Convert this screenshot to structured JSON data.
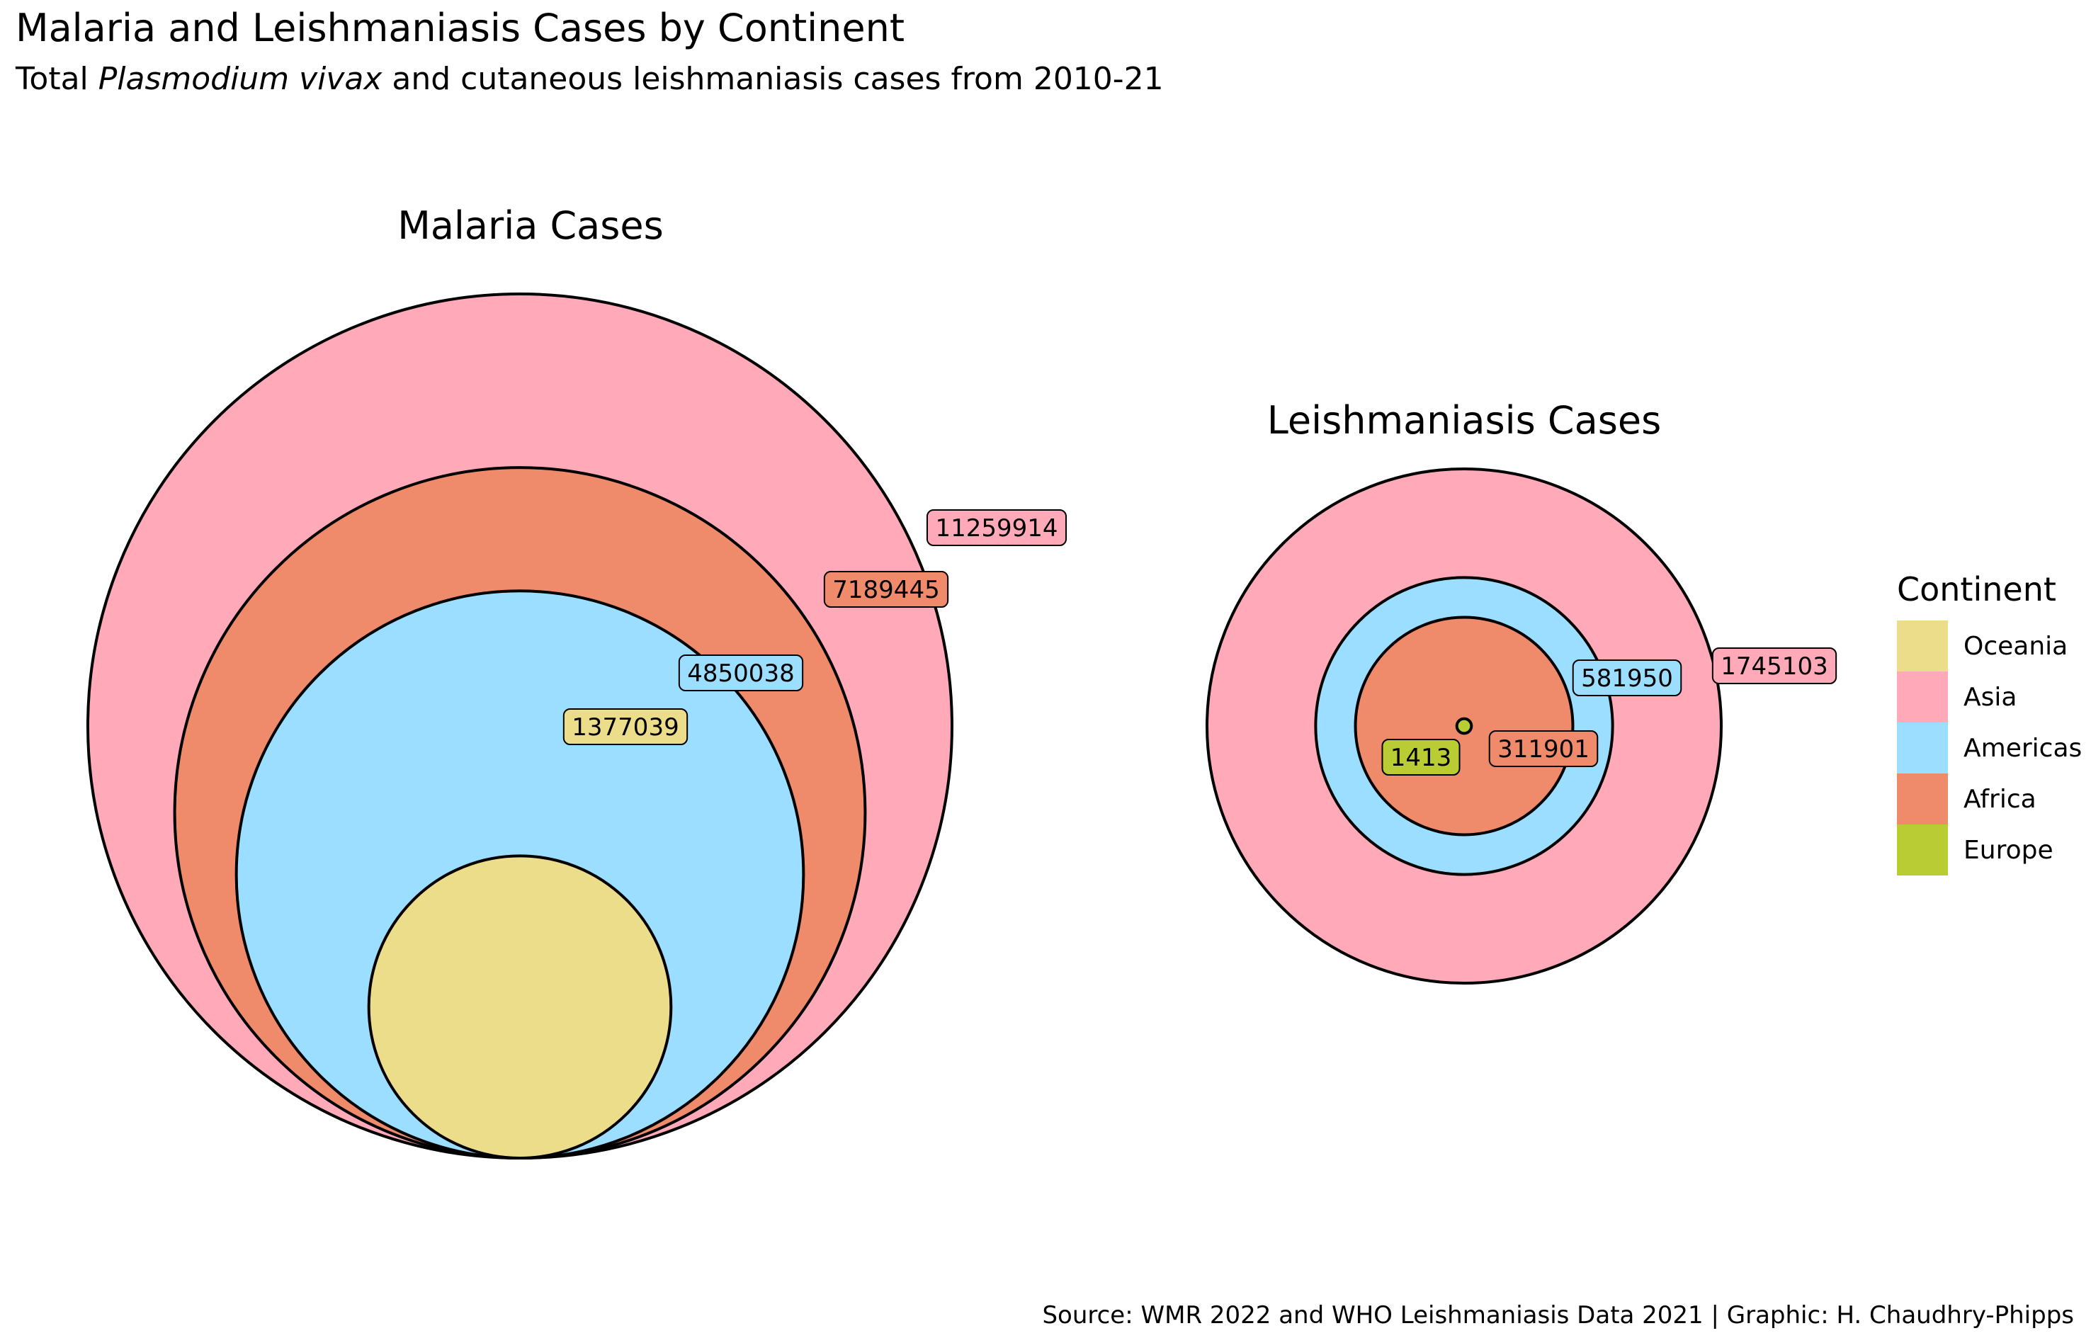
{
  "title": "Malaria and Leishmaniasis Cases by Continent",
  "subtitle": {
    "prefix": "Total ",
    "species": "Plasmodium vivax",
    "suffix": " and cutaneous leishmaniasis cases from 2010-21"
  },
  "caption": "Source: WMR 2022 and WHO Leishmaniasis Data 2021 | Graphic: H. Chaudhry-Phipps",
  "legend": {
    "title": "Continent",
    "items": [
      {
        "label": "Oceania",
        "color": "#ECDD8A"
      },
      {
        "label": "Asia",
        "color": "#FFA9B9"
      },
      {
        "label": "Americas",
        "color": "#9BDEFF"
      },
      {
        "label": "Africa",
        "color": "#EF8A6A"
      },
      {
        "label": "Europe",
        "color": "#B9CC33"
      }
    ]
  },
  "chart_data": [
    {
      "type": "nested-circles",
      "title": "Malaria Cases",
      "series": [
        {
          "name": "Asia",
          "value": 11259914,
          "color": "#FFA9B9"
        },
        {
          "name": "Africa",
          "value": 7189445,
          "color": "#EF8A6A"
        },
        {
          "name": "Americas",
          "value": 4850038,
          "color": "#9BDEFF"
        },
        {
          "name": "Oceania",
          "value": 1377039,
          "color": "#ECDD8A"
        }
      ]
    },
    {
      "type": "nested-circles",
      "title": "Leishmaniasis Cases",
      "series": [
        {
          "name": "Asia",
          "value": 1745103,
          "color": "#FFA9B9"
        },
        {
          "name": "Americas",
          "value": 581950,
          "color": "#9BDEFF"
        },
        {
          "name": "Africa",
          "value": 311901,
          "color": "#EF8A6A"
        },
        {
          "name": "Europe",
          "value": 1413,
          "color": "#B9CC33"
        }
      ]
    }
  ]
}
